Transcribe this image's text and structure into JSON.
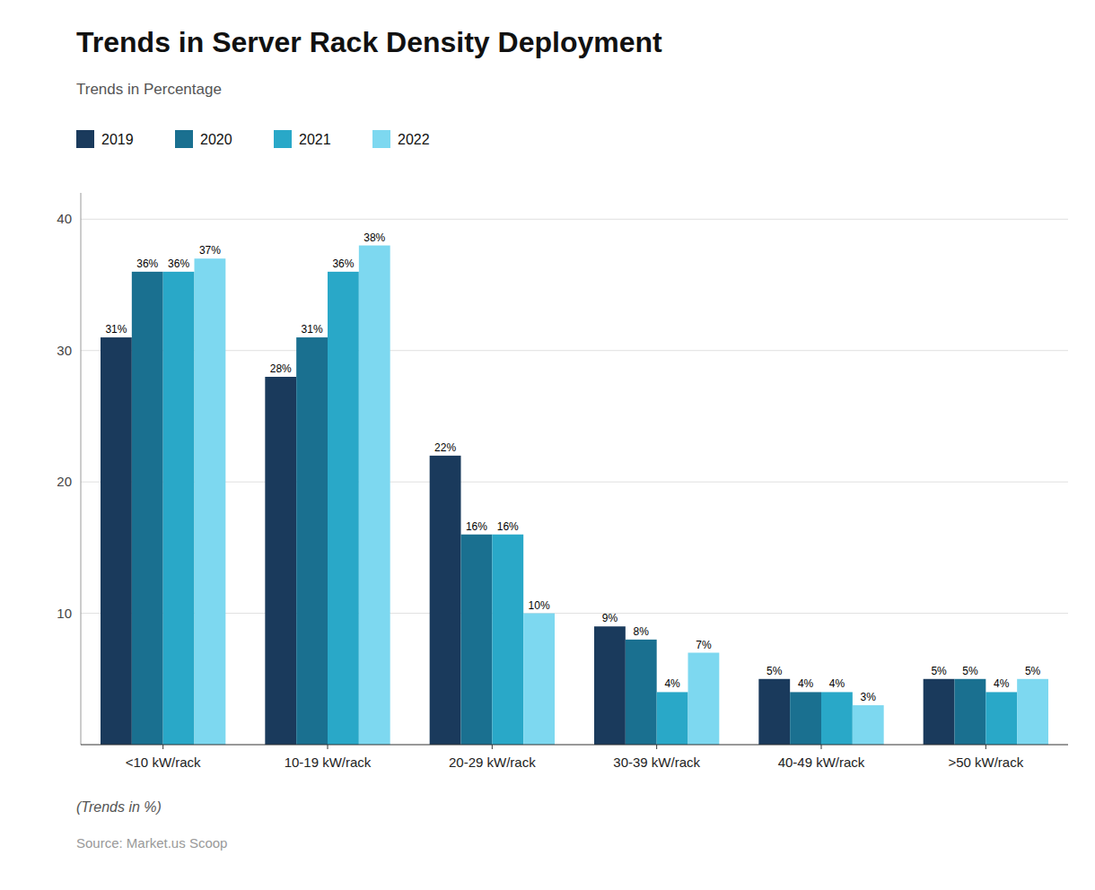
{
  "chart_data": {
    "type": "bar",
    "title": "Trends in Server Rack Density Deployment",
    "subtitle": "Trends in Percentage",
    "annotations": [
      "(Trends in %)",
      "Source: Market.us Scoop"
    ],
    "categories": [
      "<10 kW/rack",
      "10-19 kW/rack",
      "20-29 kW/rack",
      "30-39 kW/rack",
      "40-49 kW/rack",
      ">50 kW/rack"
    ],
    "series": [
      {
        "name": "2019",
        "color": "#1a3a5c",
        "values": [
          31,
          28,
          22,
          9,
          5,
          5
        ],
        "value_labels": [
          "31%",
          "28%",
          "22%",
          "9%",
          "5%",
          "5%"
        ]
      },
      {
        "name": "2020",
        "color": "#1a7090",
        "values": [
          36,
          31,
          16,
          8,
          4,
          5
        ],
        "value_labels": [
          "36%",
          "31%",
          "16%",
          "8%",
          "4%",
          "5%"
        ]
      },
      {
        "name": "2021",
        "color": "#29a8c8",
        "values": [
          36,
          36,
          16,
          4,
          4,
          4
        ],
        "value_labels": [
          "36%",
          "36%",
          "16%",
          "4%",
          "4%",
          "4%"
        ]
      },
      {
        "name": "2022",
        "color": "#7dd8f0",
        "values": [
          37,
          38,
          10,
          7,
          3,
          5
        ],
        "value_labels": [
          "37%",
          "38%",
          "10%",
          "7%",
          "3%",
          "5%"
        ]
      }
    ],
    "ylim": [
      0,
      42
    ],
    "yticks": [
      10,
      20,
      30,
      40
    ],
    "grid": true,
    "legend": "top-left",
    "data_labels": true
  }
}
